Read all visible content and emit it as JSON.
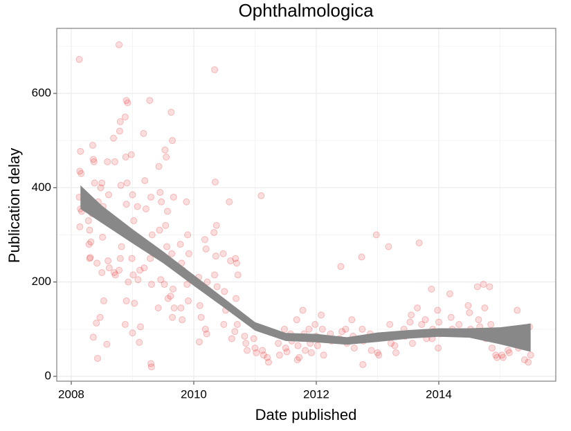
{
  "chart_data": {
    "type": "scatter",
    "title": "Ophthalmologica",
    "xlabel": "Date published",
    "ylabel": "Publication delay",
    "xlim": [
      2007.763,
      2015.91
    ],
    "ylim": [
      -10.3,
      737.9
    ],
    "xticks": [
      2008,
      2010,
      2012,
      2014
    ],
    "yticks": [
      0,
      200,
      400,
      600
    ],
    "xminor": [
      2009,
      2011,
      2013,
      2015
    ],
    "yminor": [
      100,
      300,
      500,
      700
    ],
    "grid": true,
    "color": "#e41a1c",
    "x": [
      2008.13,
      2008.15,
      2008.14,
      2008.16,
      2008.13,
      2008.15,
      2008.17,
      2008.14,
      2008.28,
      2008.3,
      2008.32,
      2008.29,
      2008.31,
      2008.3,
      2008.35,
      2008.37,
      2008.36,
      2008.38,
      2008.34,
      2008.36,
      2008.41,
      2008.43,
      2008.42,
      2008.44,
      2008.48,
      2008.5,
      2008.52,
      2008.49,
      2008.51,
      2008.5,
      2008.53,
      2008.47,
      2008.59,
      2008.61,
      2008.6,
      2008.62,
      2008.58,
      2008.69,
      2008.71,
      2008.7,
      2008.72,
      2008.78,
      2008.8,
      2008.79,
      2008.81,
      2008.82,
      2008.8,
      2008.78,
      2008.88,
      2008.9,
      2008.92,
      2008.89,
      2008.91,
      2008.9,
      2008.87,
      2008.93,
      2008.9,
      2008.88,
      2008.98,
      2009.0,
      2009.02,
      2008.99,
      2009.01,
      2009.03,
      2009.0,
      2009.08,
      2009.1,
      2009.12,
      2009.09,
      2009.11,
      2009.13,
      2009.18,
      2009.2,
      2009.22,
      2009.19,
      2009.28,
      2009.3,
      2009.32,
      2009.29,
      2009.31,
      2009.3,
      2009.31,
      2009.43,
      2009.45,
      2009.47,
      2009.44,
      2009.46,
      2009.42,
      2009.53,
      2009.55,
      2009.57,
      2009.54,
      2009.56,
      2009.52,
      2009.58,
      2009.63,
      2009.65,
      2009.67,
      2009.64,
      2009.66,
      2009.62,
      2009.68,
      2009.65,
      2009.78,
      2009.8,
      2009.82,
      2009.79,
      2009.81,
      2009.88,
      2009.9,
      2009.92,
      2009.89,
      2009.91,
      2010.08,
      2010.1,
      2010.12,
      2010.09,
      2010.18,
      2010.2,
      2010.22,
      2010.19,
      2010.21,
      2010.34,
      2010.35,
      2010.37,
      2010.33,
      2010.36,
      2010.34,
      2010.38,
      2010.48,
      2010.5,
      2010.52,
      2010.49,
      2010.58,
      2010.6,
      2010.62,
      2010.68,
      2010.7,
      2010.72,
      2010.69,
      2010.71,
      2010.67,
      2010.83,
      2010.85,
      2010.87,
      2010.98,
      2011.0,
      2011.02,
      2011.1,
      2011.12,
      2011.14,
      2011.2,
      2011.22,
      2011.38,
      2011.4,
      2011.48,
      2011.5,
      2011.52,
      2011.58,
      2011.6,
      2011.68,
      2011.7,
      2011.72,
      2011.69,
      2011.78,
      2011.8,
      2011.82,
      2011.88,
      2011.9,
      2011.92,
      2011.98,
      2012.0,
      2012.02,
      2012.08,
      2012.1,
      2012.12,
      2012.23,
      2012.25,
      2012.4,
      2012.38,
      2012.42,
      2012.48,
      2012.5,
      2012.58,
      2012.6,
      2012.62,
      2012.74,
      2012.75,
      2012.77,
      2012.76,
      2012.88,
      2012.9,
      2012.98,
      2012.99,
      2013.0,
      2013.02,
      2013.18,
      2013.2,
      2013.22,
      2013.28,
      2013.3,
      2013.43,
      2013.45,
      2013.53,
      2013.55,
      2013.57,
      2013.68,
      2013.65,
      2013.72,
      2013.78,
      2013.8,
      2013.88,
      2013.9,
      2013.92,
      2013.89,
      2013.98,
      2014.0,
      2014.02,
      2013.99,
      2014.18,
      2014.2,
      2014.22,
      2014.33,
      2014.35,
      2014.48,
      2014.5,
      2014.52,
      2014.63,
      2014.65,
      2014.67,
      2014.73,
      2014.75,
      2014.77,
      2014.83,
      2014.85,
      2014.87,
      2014.93,
      2014.95,
      2015.03,
      2015.05,
      2015.13,
      2015.15,
      2015.28,
      2015.3,
      2015.38,
      2015.4,
      2015.48,
      2015.5,
      2015.46
    ],
    "y": [
      672,
      477,
      435,
      430,
      380,
      355,
      350,
      317,
      330,
      310,
      285,
      280,
      252,
      250,
      490,
      455,
      460,
      410,
      345,
      83,
      113,
      38,
      240,
      370,
      400,
      410,
      360,
      335,
      295,
      220,
      160,
      125,
      455,
      385,
      245,
      230,
      68,
      505,
      455,
      220,
      215,
      703,
      540,
      520,
      405,
      275,
      250,
      225,
      550,
      585,
      580,
      465,
      410,
      365,
      305,
      200,
      160,
      110,
      470,
      385,
      330,
      250,
      215,
      155,
      92,
      360,
      290,
      225,
      205,
      72,
      105,
      515,
      415,
      355,
      230,
      585,
      380,
      300,
      250,
      195,
      27,
      20,
      445,
      390,
      370,
      310,
      205,
      145,
      480,
      465,
      350,
      320,
      275,
      195,
      165,
      560,
      500,
      380,
      260,
      185,
      170,
      145,
      125,
      280,
      240,
      225,
      145,
      120,
      370,
      300,
      260,
      195,
      160,
      210,
      150,
      125,
      73,
      290,
      270,
      200,
      100,
      90,
      650,
      412,
      320,
      305,
      255,
      215,
      190,
      260,
      180,
      140,
      110,
      370,
      245,
      80,
      250,
      240,
      215,
      165,
      110,
      95,
      85,
      70,
      55,
      80,
      60,
      50,
      383,
      55,
      45,
      40,
      30,
      70,
      45,
      100,
      60,
      52,
      90,
      75,
      120,
      65,
      40,
      35,
      140,
      90,
      55,
      100,
      70,
      50,
      110,
      85,
      65,
      130,
      100,
      45,
      90,
      75,
      233,
      80,
      95,
      100,
      70,
      120,
      85,
      60,
      253,
      100,
      75,
      25,
      90,
      55,
      300,
      85,
      50,
      45,
      275,
      110,
      70,
      65,
      50,
      100,
      85,
      115,
      130,
      70,
      283,
      145,
      110,
      120,
      80,
      185,
      100,
      95,
      80,
      140,
      115,
      90,
      60,
      175,
      125,
      100,
      110,
      90,
      150,
      135,
      100,
      190,
      120,
      105,
      195,
      145,
      80,
      190,
      110,
      60,
      45,
      40,
      45,
      40,
      55,
      50,
      140,
      60,
      90,
      35,
      105,
      45,
      30
    ],
    "smooth": {
      "color": "#888888",
      "x": [
        2008.15,
        2008.5,
        2009,
        2009.5,
        2010,
        2010.5,
        2011,
        2011.5,
        2012,
        2012.5,
        2013,
        2013.5,
        2014,
        2014.5,
        2015,
        2015.5
      ],
      "lower": [
        355,
        325,
        282,
        240,
        192,
        145,
        97,
        75,
        72,
        67,
        73,
        80,
        84,
        82,
        68,
        52
      ],
      "upper": [
        405,
        362,
        312,
        265,
        215,
        165,
        115,
        92,
        90,
        83,
        93,
        98,
        102,
        102,
        104,
        112
      ]
    }
  }
}
